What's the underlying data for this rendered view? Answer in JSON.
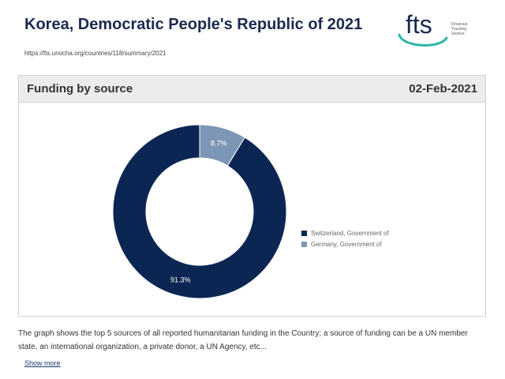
{
  "header": {
    "title": "Korea, Democratic People's Republic of 2021",
    "url": "https://fts.unocha.org/countries/118/summary/2021"
  },
  "logo": {
    "icon": "fts-logo",
    "wordmark": "fts",
    "tagline": [
      "Financial",
      "Tracking",
      "Service"
    ],
    "accent": "#2bb5a6",
    "text_color": "#1b2a4e"
  },
  "panel": {
    "title": "Funding by source",
    "date": "02-Feb-2021"
  },
  "chart_data": {
    "type": "pie",
    "donut": true,
    "categories": [
      "Switzerland, Government of",
      "Germany, Government of"
    ],
    "values": [
      91.3,
      8.7
    ],
    "labels": [
      "91.3%",
      "8.7%"
    ],
    "colors": [
      "#0b2653",
      "#7e96b6"
    ],
    "legend_position": "right"
  },
  "description": "The graph shows the top 5 sources of all reported humanitarian funding in the Country; a source of funding can be a UN member state, an international organization, a private donor, a UN Agency, etc...",
  "show_more_label": "Show more"
}
